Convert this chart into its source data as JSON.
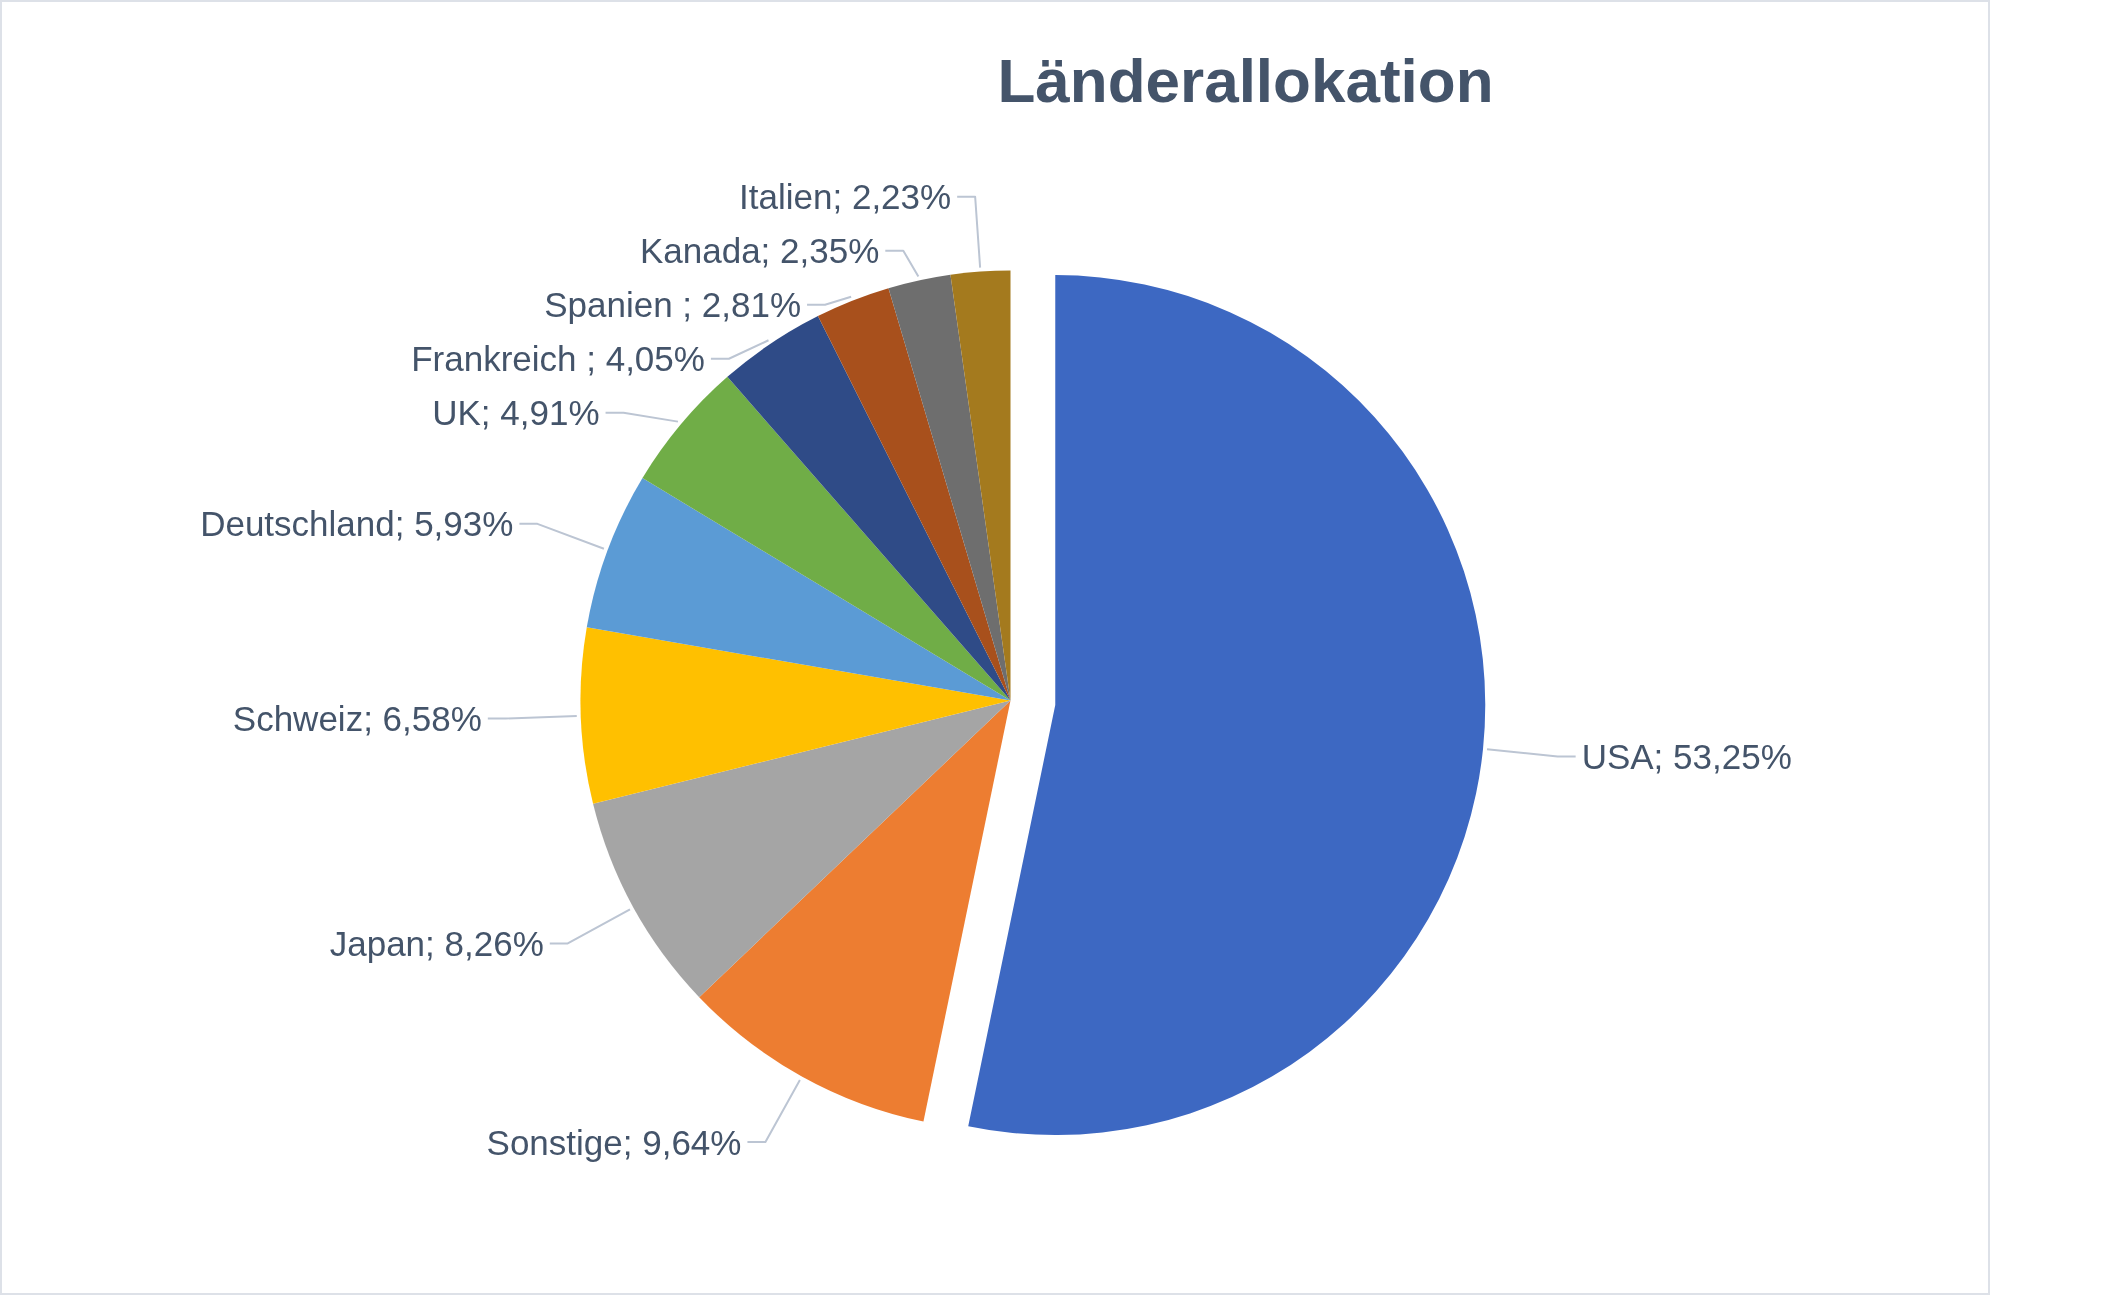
{
  "chart_data": {
    "type": "pie",
    "title": "Länderallokation",
    "categories": [
      "USA",
      "Sonstige",
      "Japan",
      "Schweiz",
      "Deutschland",
      "UK",
      "Frankreich ",
      "Spanien ",
      "Kanada",
      "Italien"
    ],
    "values": [
      53.25,
      9.64,
      8.26,
      6.58,
      5.93,
      4.91,
      4.05,
      2.81,
      2.35,
      2.23
    ],
    "value_labels": [
      "53,25%",
      "9,64%",
      "8,26%",
      "6,58%",
      "5,93%",
      "4,91%",
      "4,05%",
      "2,81%",
      "2,35%",
      "2,23%"
    ],
    "colors": [
      "#3d68c2",
      "#ed7d31",
      "#a5a5a5",
      "#ffc000",
      "#5b9bd5",
      "#70ad47",
      "#2f4b87",
      "#a8501c",
      "#6e6e6e",
      "#a47a1e"
    ]
  }
}
